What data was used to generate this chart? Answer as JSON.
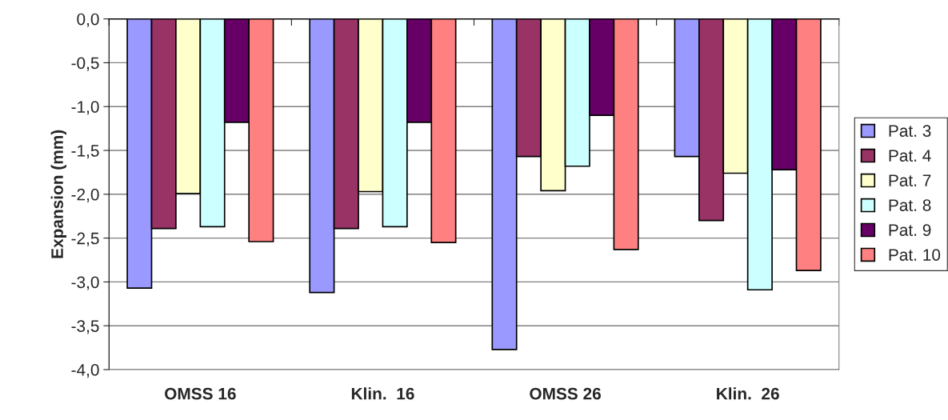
{
  "chart_data": {
    "type": "bar",
    "ylabel": "Expansion (mm)",
    "categories": [
      "OMSS 16",
      "Klin.  16",
      "OMSS 26",
      "Klin.  26"
    ],
    "series": [
      {
        "name": "Pat. 3",
        "color": "#9999ff",
        "values": [
          -3.07,
          -3.12,
          -3.77,
          -1.57
        ]
      },
      {
        "name": "Pat. 4",
        "color": "#993366",
        "values": [
          -2.39,
          -2.39,
          -1.57,
          -2.3
        ]
      },
      {
        "name": "Pat. 7",
        "color": "#ffffcc",
        "values": [
          -1.99,
          -1.97,
          -1.96,
          -1.76
        ]
      },
      {
        "name": "Pat. 8",
        "color": "#ccffff",
        "values": [
          -2.37,
          -2.37,
          -1.68,
          -3.09
        ]
      },
      {
        "name": "Pat. 9",
        "color": "#660066",
        "values": [
          -1.18,
          -1.18,
          -1.1,
          -1.72
        ]
      },
      {
        "name": "Pat. 10",
        "color": "#ff8080",
        "values": [
          -2.54,
          -2.55,
          -2.63,
          -2.87
        ]
      }
    ],
    "ylim": [
      -4.0,
      0.0
    ],
    "yticks": [
      {
        "value": 0.0,
        "label": "0,0"
      },
      {
        "value": -0.5,
        "label": "-0,5"
      },
      {
        "value": -1.0,
        "label": "-1,0"
      },
      {
        "value": -1.5,
        "label": "-1,5"
      },
      {
        "value": -2.0,
        "label": "-2,0"
      },
      {
        "value": -2.5,
        "label": "-2,5"
      },
      {
        "value": -3.0,
        "label": "-3,0"
      },
      {
        "value": -3.5,
        "label": "-3,5"
      },
      {
        "value": -4.0,
        "label": "-4,0"
      }
    ],
    "grid": "y",
    "legend": "right"
  }
}
